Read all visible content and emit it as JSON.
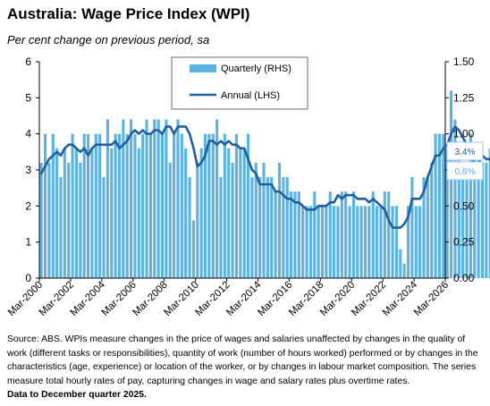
{
  "title": "Australia: Wage Price Index (WPI)",
  "subtitle": "Per cent change on previous period, sa",
  "notes": "Source: ABS.  WPIs measure changes in the price of wages and salaries unaffected by changes in the quality of work (different tasks or responsibilities), quantity of work (number of hours worked) performed or by changes in the characteristics (age, experience) or location of the worker, or by changes in labour market composition. The series measure total hourly rates of pay, capturing changes in wage and salary rates plus overtime rates.",
  "data_note": "Data to December quarter 2025.",
  "callouts": {
    "annual": "3.4%",
    "quarterly": "0.8%"
  },
  "colors": {
    "bar": "#5bb3e0",
    "line": "#1f5fa0",
    "axis": "#000000",
    "callout_annual_text": "#1f5fa0",
    "callout_quarterly_text": "#5bb3e0",
    "callout_border": "#9dc6e6"
  },
  "chart_data": {
    "type": "bar+line",
    "title": "Australia: Wage Price Index (WPI)",
    "x_ticks": [
      "Mar-2000",
      "Mar-2002",
      "Mar-2004",
      "Mar-2006",
      "Mar-2008",
      "Mar-2010",
      "Mar-2012",
      "Mar-2014",
      "Mar-2016",
      "Mar-2018",
      "Mar-2020",
      "Mar-2022",
      "Mar-2024",
      "Mar-2026"
    ],
    "x_start": "Mar-2000",
    "x_end": "Mar-2026",
    "left_axis": {
      "min": 0,
      "max": 6,
      "ticks": [
        "0",
        "1",
        "2",
        "3",
        "4",
        "5",
        "6"
      ]
    },
    "right_axis": {
      "min": 0,
      "max": 1.5,
      "ticks": [
        "0.00",
        "0.25",
        "0.50",
        "0.75",
        "1.00",
        "1.25",
        "1.50"
      ]
    },
    "legend": {
      "placement": "top-center",
      "entries": [
        "Quarterly (RHS)",
        "Annual (LHS)"
      ]
    },
    "series": [
      {
        "name": "Quarterly (RHS)",
        "axis": "right",
        "kind": "bar",
        "values": [
          0.8,
          1.0,
          0.8,
          1.0,
          0.9,
          0.7,
          0.9,
          0.8,
          1.0,
          0.9,
          0.8,
          1.0,
          1.0,
          0.9,
          1.0,
          1.0,
          0.7,
          1.1,
          0.9,
          1.0,
          1.0,
          1.1,
          1.0,
          1.1,
          1.0,
          0.9,
          1.0,
          1.1,
          1.0,
          1.1,
          1.1,
          1.0,
          1.1,
          0.8,
          1.0,
          1.1,
          1.0,
          0.9,
          0.7,
          0.4,
          0.8,
          0.9,
          1.0,
          1.0,
          1.0,
          1.1,
          0.7,
          1.0,
          0.9,
          0.8,
          1.0,
          0.9,
          0.9,
          1.0,
          0.7,
          0.8,
          0.7,
          0.8,
          0.7,
          0.7,
          0.6,
          0.8,
          0.7,
          0.7,
          0.6,
          0.6,
          0.6,
          0.5,
          0.5,
          0.5,
          0.6,
          0.5,
          0.5,
          0.5,
          0.6,
          0.5,
          0.5,
          0.6,
          0.6,
          0.5,
          0.6,
          0.5,
          0.5,
          0.5,
          0.5,
          0.6,
          0.5,
          0.5,
          0.6,
          0.6,
          0.5,
          0.5,
          0.2,
          0.1,
          0.5,
          0.7,
          0.5,
          0.5,
          0.7,
          0.7,
          0.8,
          1.0,
          1.0,
          1.0,
          0.9,
          1.3,
          1.1,
          0.9,
          0.8,
          0.8,
          1.0,
          0.9,
          0.9,
          0.8,
          0.8,
          0.9,
          0.9,
          0.8,
          0.9,
          0.8
        ],
        "color": "#5bb3e0"
      },
      {
        "name": "Annual (LHS)",
        "axis": "left",
        "kind": "line",
        "values": [
          2.9,
          3.1,
          3.3,
          3.4,
          3.5,
          3.4,
          3.6,
          3.7,
          3.7,
          3.6,
          3.5,
          3.6,
          3.4,
          3.6,
          3.7,
          3.7,
          3.7,
          3.7,
          3.7,
          3.8,
          3.6,
          3.7,
          3.8,
          4.0,
          4.1,
          4.0,
          4.1,
          4.0,
          4.0,
          4.1,
          4.1,
          4.0,
          4.2,
          4.2,
          4.0,
          4.2,
          4.2,
          4.2,
          4.0,
          3.6,
          3.1,
          3.2,
          3.4,
          3.8,
          3.8,
          3.7,
          3.8,
          3.7,
          3.8,
          3.7,
          3.7,
          3.6,
          3.6,
          3.3,
          3.0,
          2.9,
          2.6,
          2.6,
          2.6,
          2.6,
          2.4,
          2.4,
          2.3,
          2.2,
          2.2,
          2.1,
          2.1,
          2.0,
          1.9,
          1.9,
          1.9,
          2.0,
          2.0,
          2.0,
          2.1,
          2.1,
          2.3,
          2.2,
          2.3,
          2.3,
          2.3,
          2.2,
          2.2,
          2.2,
          2.1,
          2.2,
          2.1,
          2.0,
          1.9,
          1.6,
          1.4,
          1.4,
          1.4,
          1.5,
          1.7,
          2.2,
          2.2,
          2.2,
          2.4,
          2.8,
          3.1,
          3.4,
          3.4,
          3.6,
          3.7,
          4.0,
          4.2,
          4.1,
          3.9,
          3.7,
          3.5,
          3.1,
          3.2,
          3.4,
          3.3,
          3.3,
          3.2,
          3.3,
          3.4,
          3.4
        ],
        "color": "#1f5fa0"
      }
    ]
  }
}
